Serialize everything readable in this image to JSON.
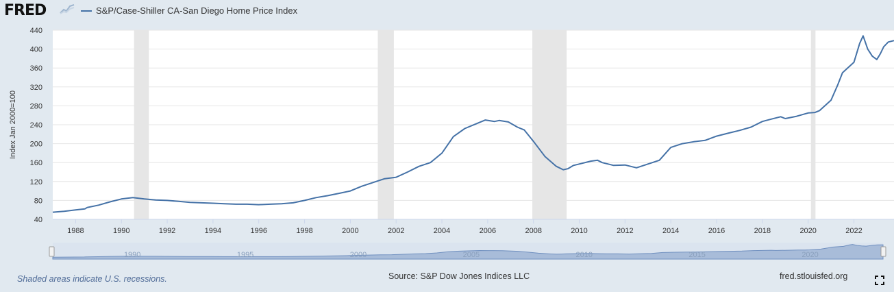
{
  "header": {
    "logo_text": "FRED",
    "logo_mark_icon": "line-chart-icon"
  },
  "colors": {
    "series": "#4572a7",
    "recession": "#e6e6e6",
    "background": "#e1e9f0",
    "plot_bg": "#ffffff",
    "grid": "#e6e6e6",
    "navigator_fill": "#a8bcd9",
    "navigator_bg": "#dbe4ef"
  },
  "chart_data": {
    "type": "line",
    "title": "",
    "ylabel": "Index Jan 2000=100",
    "xlabel": "",
    "xlim": [
      1987.0,
      2023.75
    ],
    "ylim": [
      40,
      440
    ],
    "y_ticks": [
      40,
      80,
      120,
      160,
      200,
      240,
      280,
      320,
      360,
      400,
      440
    ],
    "x_ticks": [
      "1988",
      "1990",
      "1992",
      "1994",
      "1996",
      "1998",
      "2000",
      "2002",
      "2004",
      "2006",
      "2008",
      "2010",
      "2012",
      "2014",
      "2016",
      "2018",
      "2020",
      "2022"
    ],
    "grid": true,
    "legend": "top-left",
    "recessions": [
      [
        1990.55,
        1991.2
      ],
      [
        2001.2,
        2001.9
      ],
      [
        2007.95,
        2009.45
      ],
      [
        2020.12,
        2020.32
      ]
    ],
    "navigator_labels": [
      "1990",
      "1995",
      "2000",
      "2005",
      "2010",
      "2015",
      "2020"
    ],
    "series": [
      {
        "name": "S&P/Case-Shiller CA-San Diego Home Price Index",
        "x": [
          1987.0,
          1987.5,
          1988.0,
          1988.4,
          1988.5,
          1989.0,
          1989.5,
          1990.0,
          1990.5,
          1991.0,
          1991.5,
          1992.0,
          1992.5,
          1993.0,
          1993.5,
          1994.0,
          1994.5,
          1995.0,
          1995.5,
          1996.0,
          1996.5,
          1997.0,
          1997.5,
          1998.0,
          1998.5,
          1999.0,
          1999.5,
          2000.0,
          2000.5,
          2001.0,
          2001.5,
          2002.0,
          2002.5,
          2003.0,
          2003.5,
          2004.0,
          2004.5,
          2005.0,
          2005.5,
          2005.9,
          2006.3,
          2006.5,
          2006.9,
          2007.3,
          2007.6,
          2008.0,
          2008.5,
          2009.0,
          2009.3,
          2009.5,
          2009.75,
          2010.0,
          2010.5,
          2010.8,
          2011.0,
          2011.5,
          2012.0,
          2012.5,
          2013.0,
          2013.5,
          2014.0,
          2014.5,
          2015.0,
          2015.5,
          2016.0,
          2016.5,
          2017.0,
          2017.5,
          2018.0,
          2018.4,
          2018.8,
          2019.0,
          2019.5,
          2020.0,
          2020.3,
          2020.5,
          2021.0,
          2021.3,
          2021.5,
          2022.0,
          2022.25,
          2022.4,
          2022.6,
          2022.8,
          2023.0,
          2023.15,
          2023.3,
          2023.5,
          2023.75
        ],
        "values": [
          55,
          57,
          60,
          62,
          65,
          70,
          77,
          83,
          86,
          83,
          81,
          80,
          78,
          76,
          75,
          74,
          73,
          72,
          72,
          71,
          72,
          73,
          75,
          80,
          86,
          90,
          95,
          100,
          110,
          118,
          126,
          129,
          140,
          152,
          160,
          180,
          215,
          232,
          242,
          250,
          247,
          249,
          246,
          235,
          229,
          205,
          173,
          152,
          145,
          147,
          154,
          157,
          163,
          165,
          160,
          154,
          155,
          149,
          157,
          165,
          192,
          200,
          204,
          207,
          216,
          222,
          228,
          235,
          247,
          252,
          257,
          253,
          258,
          265,
          266,
          270,
          292,
          325,
          350,
          372,
          412,
          428,
          400,
          385,
          378,
          390,
          405,
          415,
          418
        ]
      }
    ]
  },
  "footer": {
    "note": "Shaded areas indicate U.S. recessions.",
    "source": "Source: S&P Dow Jones Indices LLC",
    "site": "fred.stlouisfed.org",
    "fullscreen_icon": "fullscreen-icon"
  }
}
